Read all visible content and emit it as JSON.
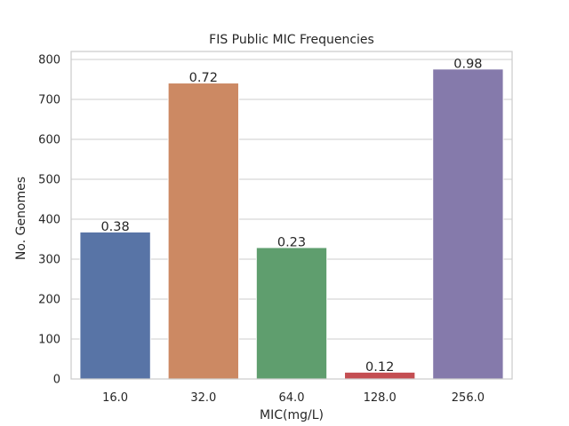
{
  "chart_data": {
    "type": "bar",
    "title": "FIS Public MIC Frequencies",
    "xlabel": "MIC(mg/L)",
    "ylabel": "No. Genomes",
    "categories": [
      "16.0",
      "32.0",
      "64.0",
      "128.0",
      "256.0"
    ],
    "values": [
      368,
      741,
      329,
      17,
      776
    ],
    "bar_labels": [
      "0.38",
      "0.72",
      "0.23",
      "0.12",
      "0.98"
    ],
    "colors": [
      "#5874a6",
      "#cc8963",
      "#5f9e6e",
      "#c44e52",
      "#857aab"
    ],
    "ylim": [
      0,
      820
    ],
    "yticks": [
      0,
      100,
      200,
      300,
      400,
      500,
      600,
      700,
      800
    ],
    "grid": "horizontal"
  }
}
